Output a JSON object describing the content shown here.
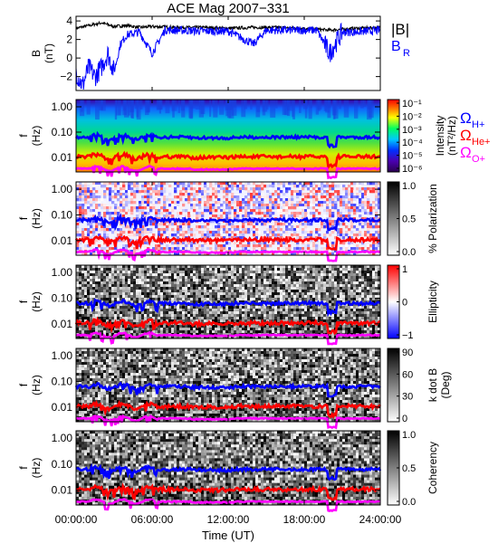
{
  "title": "ACE Mag 2007−331",
  "xlabel": "Time (UT)",
  "xticks": [
    "00:00:00",
    "06:00:00",
    "12:00:00",
    "18:00:00",
    "24:00:00"
  ],
  "colors": {
    "B": "#000000",
    "BR": "#0000ff",
    "H": "#0000ff",
    "He": "#ff0000",
    "O": "#ff00ff"
  },
  "legend_top": {
    "b_mag": "|B|",
    "b_r": "B",
    "b_r_sub": "R"
  },
  "legend_gyro": {
    "h": "Ω",
    "h_sub": "H+",
    "he": "Ω",
    "he_sub": "He+",
    "o": "Ω",
    "o_sub": "O+"
  },
  "chart_data": [
    {
      "type": "line",
      "ylabel": "B",
      "yunit": "(nT)",
      "ylim": [
        -3.5,
        4.5
      ],
      "yticks": [
        "4",
        "2",
        "0",
        "−2"
      ],
      "x_range_hours": [
        0,
        24
      ],
      "series": [
        {
          "name": "|B|",
          "x": [
            0,
            1,
            2,
            3,
            4,
            5,
            6,
            8,
            10,
            12,
            14,
            16,
            18,
            20,
            22,
            24
          ],
          "values": [
            3.2,
            3.5,
            3.8,
            3.4,
            3.5,
            3.3,
            3.4,
            3.3,
            3.3,
            3.2,
            3.3,
            3.3,
            3.2,
            3.0,
            3.2,
            3.3
          ]
        },
        {
          "name": "BR",
          "x": [
            0,
            0.5,
            1,
            1.5,
            2,
            2.5,
            3,
            3.5,
            4,
            5,
            6,
            7,
            8,
            10,
            12,
            14,
            15,
            16,
            17,
            18,
            19,
            20,
            21,
            22,
            23,
            24
          ],
          "values": [
            -1.5,
            -3.0,
            -1.0,
            -2.0,
            -1.0,
            0.5,
            -1.5,
            1.5,
            2.5,
            2.8,
            0.5,
            3.0,
            3.0,
            2.9,
            2.9,
            1.5,
            3.0,
            3.0,
            3.0,
            3.0,
            3.0,
            0.5,
            2.8,
            2.8,
            2.9,
            3.0
          ]
        }
      ]
    },
    {
      "type": "heatmap",
      "panel": "intensity",
      "ylabel": "f",
      "yunit": "(Hz)",
      "yticks": [
        "1.00",
        "0.10",
        "0.01"
      ],
      "colorbar_label": "Intensity",
      "colorbar_unit": "(nT²/Hz)",
      "colorbar_ticks": [
        "10⁻¹",
        "10⁻²",
        "10⁻³",
        "10⁻⁴",
        "10⁻⁵",
        "10⁻⁶"
      ]
    },
    {
      "type": "heatmap",
      "panel": "polarization",
      "ylabel": "f",
      "yunit": "(Hz)",
      "yticks": [
        "1.00",
        "0.10",
        "0.01"
      ],
      "colorbar_label": "% Polarization",
      "colorbar_ticks": [
        "1.0",
        "0.5",
        "0.0"
      ]
    },
    {
      "type": "heatmap",
      "panel": "ellipticity",
      "ylabel": "f",
      "yunit": "(Hz)",
      "yticks": [
        "1.00",
        "0.10",
        "0.01"
      ],
      "colorbar_label": "Ellipticity",
      "colorbar_ticks": [
        "1",
        "0",
        "−1"
      ]
    },
    {
      "type": "heatmap",
      "panel": "kdotb",
      "ylabel": "f",
      "yunit": "(Hz)",
      "yticks": [
        "1.00",
        "0.10",
        "0.01"
      ],
      "colorbar_label": "k dot B",
      "colorbar_unit": "(Deg)",
      "colorbar_ticks": [
        "90",
        "60",
        "30",
        "0"
      ]
    },
    {
      "type": "heatmap",
      "panel": "coherency",
      "ylabel": "f",
      "yunit": "(Hz)",
      "yticks": [
        "1.00",
        "0.10",
        "0.01"
      ],
      "colorbar_label": "Coherency",
      "colorbar_ticks": [
        "1.0",
        "0.5",
        "0.0"
      ]
    }
  ]
}
